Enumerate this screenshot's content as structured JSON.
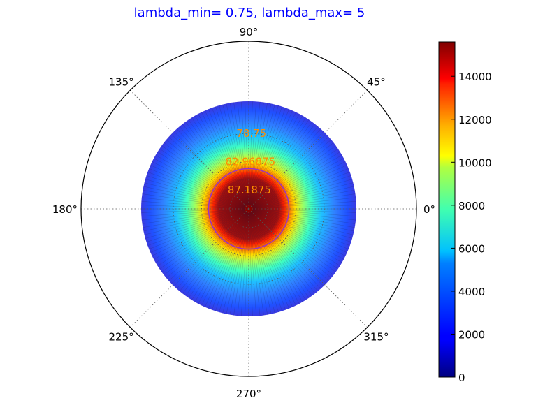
{
  "chart_data": {
    "type": "heatmap",
    "projection": "polar",
    "title": "lambda_min= 0.75, lambda_max= 5",
    "angle_ticks": [
      "0°",
      "45°",
      "90°",
      "135°",
      "180°",
      "225°",
      "270°",
      "315°"
    ],
    "radial_labels": [
      "78.75",
      "82.96875",
      "87.1875"
    ],
    "colorbar": {
      "colormap": "jet",
      "range": [
        0,
        15600
      ],
      "ticks": [
        "0",
        "2000",
        "4000",
        "6000",
        "8000",
        "10000",
        "12000",
        "14000"
      ]
    },
    "data_extent_label_value": 78.75,
    "highlight_contour_label_value": 84.0,
    "grid": true,
    "colors": {
      "title": "#0000ff",
      "radial_label": "#ff8c00",
      "contour": "#9b30c8",
      "axis": "#000000",
      "grid": "#555555"
    }
  }
}
